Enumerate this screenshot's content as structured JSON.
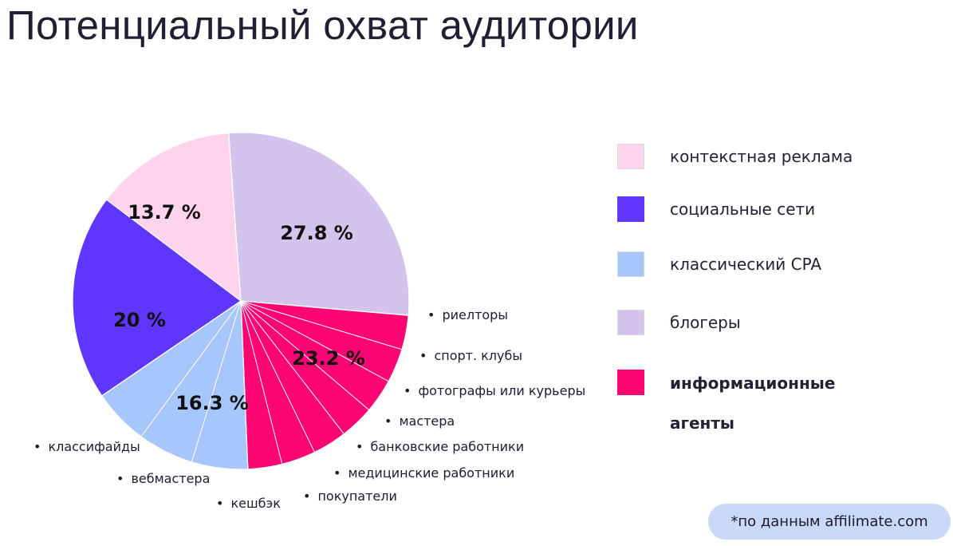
{
  "title": "Потенциальный охват аудитории",
  "source_note": "*по данным affilimate.com",
  "colors": {
    "context_ads": "#ffd3eb",
    "social": "#5f37fc",
    "cpa": "#a6c6fc",
    "bloggers": "#d2c4ec",
    "info_agents": "#fd0673"
  },
  "chart_data": {
    "type": "pie",
    "slices": [
      {
        "label": "контекстная реклама",
        "value": 13.7,
        "display": "13.7 %",
        "color": "#ffd3eb"
      },
      {
        "label": "блогеры",
        "value": 27.8,
        "display": "27.8 %",
        "color": "#d2c4ec"
      },
      {
        "label": "информационные агенты",
        "value": 23.2,
        "display": "23.2 %",
        "color": "#fd0673"
      },
      {
        "label": "классический CPA",
        "value": 16.3,
        "display": "16.3 %",
        "color": "#a6c6fc"
      },
      {
        "label": "социальные сети",
        "value": 20,
        "display": "20 %",
        "color": "#5f37fc"
      }
    ],
    "sub_segments": {
      "информационные агенты": [
        "риелторы",
        "спорт. клубы",
        "фотографы или курьеры",
        "мастера",
        "банковские работники",
        "медицинские работники",
        "покупатели"
      ],
      "классический CPA": [
        "кешбэк",
        "вебмастера",
        "классифайды"
      ]
    },
    "legend": [
      {
        "label": "контекстная реклама",
        "color": "#ffd3eb",
        "bold": false
      },
      {
        "label": "социальные сети",
        "color": "#5f37fc",
        "bold": false
      },
      {
        "label": "классический CPA",
        "color": "#a6c6fc",
        "bold": false
      },
      {
        "label": "блогеры",
        "color": "#d2c4ec",
        "bold": false
      },
      {
        "label": "информационные агенты",
        "color": "#fd0673",
        "bold": true
      }
    ],
    "legend_position": "right"
  }
}
